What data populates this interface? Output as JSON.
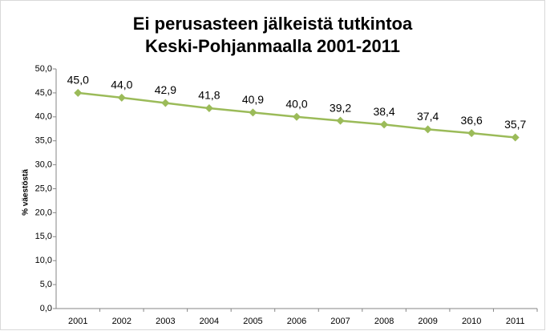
{
  "chart_data": {
    "type": "line",
    "title": [
      "Ei perusasteen jälkeistä tutkintoa",
      "Keski-Pohjanmaalla 2001-2011"
    ],
    "y_label": "% väestöstä",
    "categories": [
      "2001",
      "2002",
      "2003",
      "2004",
      "2005",
      "2006",
      "2007",
      "2008",
      "2009",
      "2010",
      "2011"
    ],
    "series": [
      {
        "name": "% väestöstä",
        "color": "#9bbb59",
        "values": [
          45.0,
          44.0,
          42.9,
          41.8,
          40.9,
          40.0,
          39.2,
          38.4,
          37.4,
          36.6,
          35.7
        ],
        "value_labels": [
          "45,0",
          "44,0",
          "42,9",
          "41,8",
          "40,9",
          "40,0",
          "39,2",
          "38,4",
          "37,4",
          "36,6",
          "35,7"
        ]
      }
    ],
    "ylim": [
      0,
      50
    ],
    "yticks": [
      {
        "value": 0,
        "label": "0,0"
      },
      {
        "value": 5,
        "label": "5,0"
      },
      {
        "value": 10,
        "label": "10,0"
      },
      {
        "value": 15,
        "label": "15,0"
      },
      {
        "value": 20,
        "label": "20,0"
      },
      {
        "value": 25,
        "label": "25,0"
      },
      {
        "value": 30,
        "label": "30,0"
      },
      {
        "value": 35,
        "label": "35,0"
      },
      {
        "value": 40,
        "label": "40,0"
      },
      {
        "value": 45,
        "label": "45,0"
      },
      {
        "value": 50,
        "label": "50,0"
      }
    ],
    "grid": false,
    "legend": false
  }
}
